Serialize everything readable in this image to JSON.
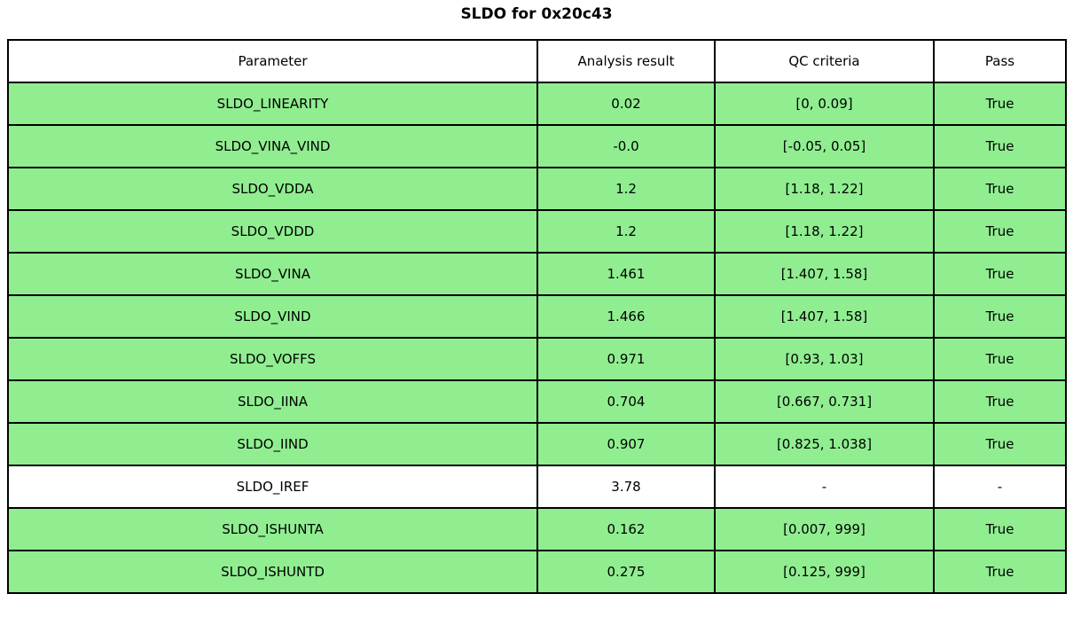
{
  "title": "SLDO for 0x20c43",
  "colors": {
    "pass_row_bg": "#90ee90",
    "neutral_row_bg": "#ffffff",
    "border": "#000000",
    "text": "#000000"
  },
  "table": {
    "headers": [
      "Parameter",
      "Analysis result",
      "QC criteria",
      "Pass"
    ],
    "rows": [
      {
        "parameter": "SLDO_LINEARITY",
        "result": "0.02",
        "qc": "[0, 0.09]",
        "pass": "True",
        "highlight": true
      },
      {
        "parameter": "SLDO_VINA_VIND",
        "result": "-0.0",
        "qc": "[-0.05, 0.05]",
        "pass": "True",
        "highlight": true
      },
      {
        "parameter": "SLDO_VDDA",
        "result": "1.2",
        "qc": "[1.18, 1.22]",
        "pass": "True",
        "highlight": true
      },
      {
        "parameter": "SLDO_VDDD",
        "result": "1.2",
        "qc": "[1.18, 1.22]",
        "pass": "True",
        "highlight": true
      },
      {
        "parameter": "SLDO_VINA",
        "result": "1.461",
        "qc": "[1.407, 1.58]",
        "pass": "True",
        "highlight": true
      },
      {
        "parameter": "SLDO_VIND",
        "result": "1.466",
        "qc": "[1.407, 1.58]",
        "pass": "True",
        "highlight": true
      },
      {
        "parameter": "SLDO_VOFFS",
        "result": "0.971",
        "qc": "[0.93, 1.03]",
        "pass": "True",
        "highlight": true
      },
      {
        "parameter": "SLDO_IINA",
        "result": "0.704",
        "qc": "[0.667, 0.731]",
        "pass": "True",
        "highlight": true
      },
      {
        "parameter": "SLDO_IIND",
        "result": "0.907",
        "qc": "[0.825, 1.038]",
        "pass": "True",
        "highlight": true
      },
      {
        "parameter": "SLDO_IREF",
        "result": "3.78",
        "qc": "-",
        "pass": "-",
        "highlight": false
      },
      {
        "parameter": "SLDO_ISHUNTA",
        "result": "0.162",
        "qc": "[0.007, 999]",
        "pass": "True",
        "highlight": true
      },
      {
        "parameter": "SLDO_ISHUNTD",
        "result": "0.275",
        "qc": "[0.125, 999]",
        "pass": "True",
        "highlight": true
      }
    ]
  },
  "chart_data": {
    "type": "table",
    "title": "SLDO for 0x20c43",
    "columns": [
      "Parameter",
      "Analysis result",
      "QC criteria",
      "Pass"
    ],
    "rows": [
      [
        "SLDO_LINEARITY",
        "0.02",
        "[0, 0.09]",
        "True"
      ],
      [
        "SLDO_VINA_VIND",
        "-0.0",
        "[-0.05, 0.05]",
        "True"
      ],
      [
        "SLDO_VDDA",
        "1.2",
        "[1.18, 1.22]",
        "True"
      ],
      [
        "SLDO_VDDD",
        "1.2",
        "[1.18, 1.22]",
        "True"
      ],
      [
        "SLDO_VINA",
        "1.461",
        "[1.407, 1.58]",
        "True"
      ],
      [
        "SLDO_VIND",
        "1.466",
        "[1.407, 1.58]",
        "True"
      ],
      [
        "SLDO_VOFFS",
        "0.971",
        "[0.93, 1.03]",
        "True"
      ],
      [
        "SLDO_IINA",
        "0.704",
        "[0.667, 0.731]",
        "True"
      ],
      [
        "SLDO_IIND",
        "0.907",
        "[0.825, 1.038]",
        "True"
      ],
      [
        "SLDO_IREF",
        "3.78",
        "-",
        "-"
      ],
      [
        "SLDO_ISHUNTA",
        "0.162",
        "[0.007, 999]",
        "True"
      ],
      [
        "SLDO_ISHUNTD",
        "0.275",
        "[0.125, 999]",
        "True"
      ]
    ],
    "row_highlight_color": "#90ee90",
    "legend_position": "none",
    "grid": true
  }
}
